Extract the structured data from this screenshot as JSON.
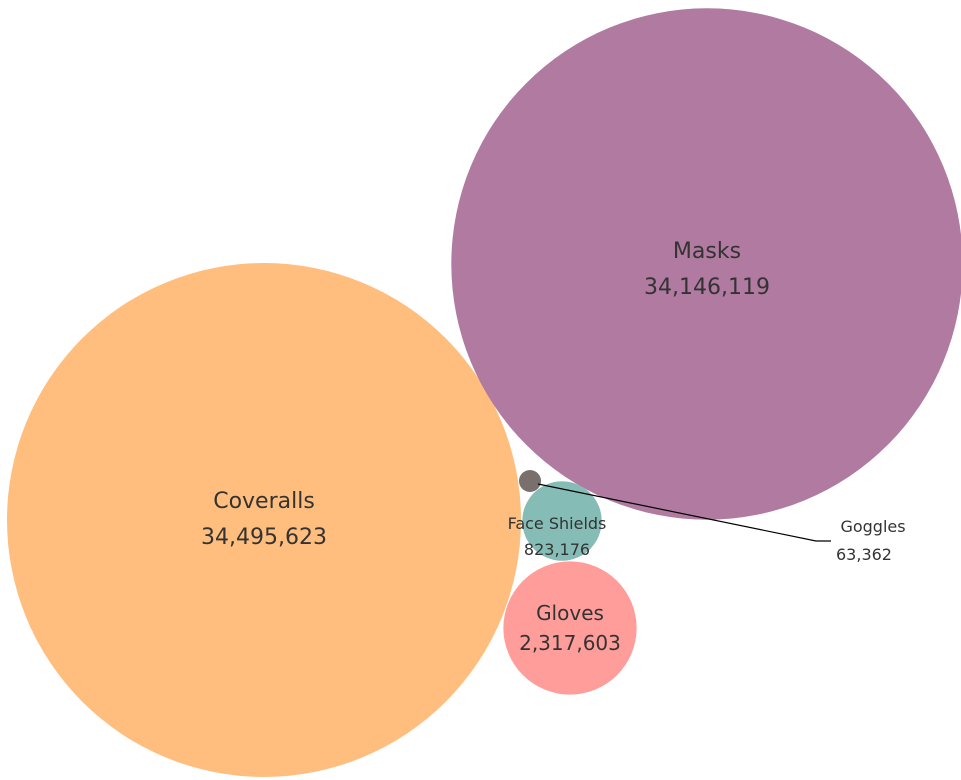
{
  "chart_data": {
    "type": "bubble",
    "title": "",
    "bubbles": [
      {
        "name": "Masks",
        "value": 34146119,
        "value_label": "34,146,119",
        "color": "#b07aa1"
      },
      {
        "name": "Coveralls",
        "value": 34495623,
        "value_label": "34,495,623",
        "color": "#ffbe7d"
      },
      {
        "name": "Face Shields",
        "value": 823176,
        "value_label": "823,176",
        "color": "#86bcb6"
      },
      {
        "name": "Gloves",
        "value": 2317603,
        "value_label": "2,317,603",
        "color": "#ff9d9a"
      },
      {
        "name": "Goggles",
        "value": 63362,
        "value_label": "63,362",
        "color": "#79706e"
      }
    ]
  }
}
